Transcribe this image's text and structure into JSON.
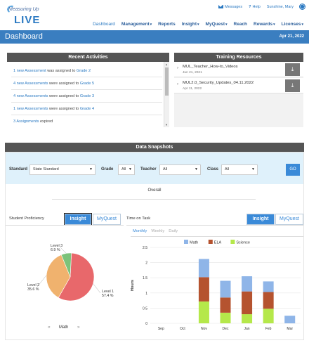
{
  "brand": {
    "line1": "Measuring Up",
    "line2": "LIVE"
  },
  "utility": {
    "messages": "Messages",
    "help": "Help",
    "user": "Sunshine, Mary"
  },
  "nav": [
    {
      "label": "Dashboard",
      "dropdown": false,
      "active": true
    },
    {
      "label": "Management",
      "dropdown": true
    },
    {
      "label": "Reports",
      "dropdown": false
    },
    {
      "label": "Insight",
      "dropdown": true
    },
    {
      "label": "MyQuest",
      "dropdown": true
    },
    {
      "label": "Reach",
      "dropdown": false
    },
    {
      "label": "Rewards",
      "dropdown": true
    },
    {
      "label": "Licenses",
      "dropdown": true
    }
  ],
  "page": {
    "title": "Dashboard",
    "date": "Apr 21, 2022"
  },
  "recent_activities": {
    "title": "Recent Activities",
    "items": [
      {
        "link": "1 new Assessment",
        "text": " was assigned to ",
        "target": "Grade 2"
      },
      {
        "link": "4 new Assessments",
        "text": " were assigned to ",
        "target": "Grade 5"
      },
      {
        "link": "4 new Assessments",
        "text": " were assigned to ",
        "target": "Grade 3"
      },
      {
        "link": "1 new Assessments",
        "text": " were assigned to ",
        "target": "Grade 4"
      },
      {
        "link": "3 Assignments",
        "text": " expired",
        "target": ""
      }
    ]
  },
  "training_resources": {
    "title": "Training Resources",
    "items": [
      {
        "name": "MUL_Teacher_How-to_Videos",
        "date": "Jun 21, 2021"
      },
      {
        "name": "MUL2.0_Security_Updates_04.11.2022",
        "date": "Apr 11, 2022"
      }
    ]
  },
  "data_snapshots": {
    "title": "Data Snapshots",
    "filters": {
      "standard_label": "Standard",
      "standard_value": "State Standard",
      "grade_label": "Grade",
      "grade_value": "All",
      "teacher_label": "Teacher",
      "teacher_value": "All",
      "class_label": "Class",
      "class_value": "All",
      "go": "GO"
    },
    "overall": "Overall",
    "proficiency": {
      "label": "Student Proficiency",
      "insight": "Insight",
      "myquest": "MyQuest",
      "subject": "Math",
      "prev": "«",
      "next": "»"
    },
    "time_on_task": {
      "label": "Time on Task",
      "insight": "Insight",
      "myquest": "MyQuest",
      "periods": [
        "Monthly",
        "Weekly",
        "Daily"
      ],
      "active_period": "Monthly"
    }
  },
  "chart_data": [
    {
      "type": "pie",
      "title": "",
      "slices": [
        {
          "name": "Level 1",
          "value": 57.4,
          "label": "57.4 %",
          "color": "#e8686b"
        },
        {
          "name": "Level 2",
          "value": 35.6,
          "label": "35.6 %",
          "color": "#f0b26e"
        },
        {
          "name": "Level 3",
          "value": 6.9,
          "label": "6.9 %",
          "color": "#7cc37a"
        }
      ]
    },
    {
      "type": "bar",
      "stacked": true,
      "categories": [
        "Sep",
        "Oct",
        "Nov",
        "Dec",
        "Jan",
        "Feb",
        "Mar"
      ],
      "series": [
        {
          "name": "Math",
          "color": "#8fb5e8",
          "values": [
            0,
            0,
            0.6,
            0.55,
            0.5,
            0.35,
            0.25
          ]
        },
        {
          "name": "ELA",
          "color": "#b5532f",
          "values": [
            0,
            0,
            0.8,
            0.5,
            0.75,
            0.55,
            0
          ]
        },
        {
          "name": "Science",
          "color": "#b5e84a",
          "values": [
            0,
            0,
            0.72,
            0.35,
            0.3,
            0.48,
            0
          ]
        }
      ],
      "ylabel": "Hours",
      "ylim": [
        0,
        2.5
      ],
      "yticks": [
        "0",
        "0.5",
        "1",
        "1.5",
        "2",
        "2.5"
      ],
      "legend": "top",
      "grid": true
    }
  ]
}
